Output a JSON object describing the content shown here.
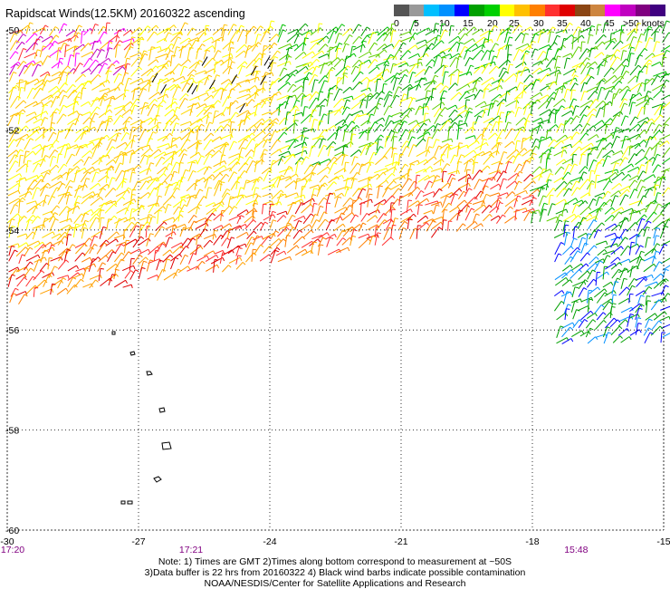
{
  "title": "Rapidscat Winds(12.5KM) 20160322 ascending",
  "legend": {
    "colors": [
      "#555555",
      "#999999",
      "#00bfff",
      "#0090ff",
      "#0000ff",
      "#00a000",
      "#00d000",
      "#ffff00",
      "#ffc000",
      "#ff7f00",
      "#ff3030",
      "#e00000",
      "#8b4513",
      "#cd853f",
      "#ff00ff",
      "#c000c0",
      "#800080",
      "#400080"
    ],
    "labels": [
      "0",
      "5",
      "10",
      "15",
      "20",
      "25",
      "30",
      "35",
      "40",
      "45",
      ">50 knots"
    ],
    "break_values": [
      0,
      5,
      10,
      15,
      20,
      25,
      30,
      35,
      40,
      45,
      50
    ]
  },
  "axes": {
    "lat_labels": [
      "-50",
      "-52",
      "-54",
      "-56",
      "-58",
      "-60"
    ],
    "lon_labels": [
      "-30",
      "-27",
      "-24",
      "-21",
      "-18",
      "-15"
    ],
    "lat_values": [
      -50,
      -52,
      -54,
      -56,
      -58,
      -60
    ],
    "lon_values": [
      -30,
      -27,
      -24,
      -21,
      -18,
      -15
    ]
  },
  "times": [
    "17:20",
    "17:21",
    "15:48"
  ],
  "time_longitudes": [
    -30,
    -25.8,
    -17
  ],
  "time_color": "#800080",
  "footer": [
    "Note: 1) Times are GMT 2)Times along bottom correspond to measurement at ~50S",
    "3)Data buffer is 22 hrs from 20160322 4) Black wind barbs indicate possible contamination",
    "NOAA/NESDIS/Center for Satellite Applications and Research"
  ]
}
